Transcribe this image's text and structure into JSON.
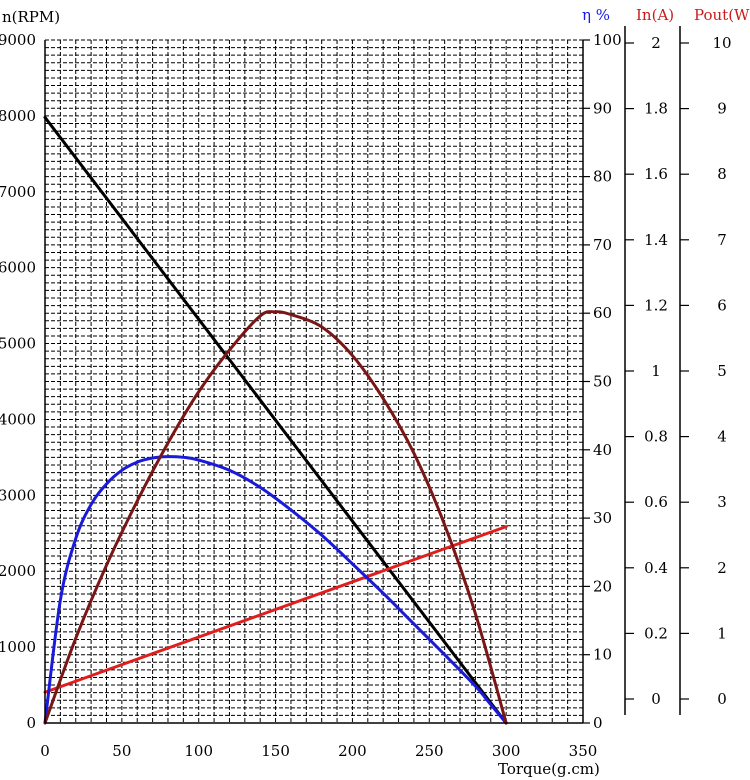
{
  "chart_data": {
    "type": "line",
    "title": "",
    "xlabel": "Torque(g.cm)",
    "xlim": [
      0,
      350
    ],
    "x_ticks": [
      0,
      50,
      100,
      150,
      200,
      250,
      300,
      350
    ],
    "grid": true,
    "axes": {
      "speed": {
        "label": "n(RPM)",
        "min": 0,
        "max": 9000,
        "ticks": [
          0,
          1000,
          2000,
          3000,
          4000,
          5000,
          6000,
          7000,
          8000,
          9000
        ],
        "color": "#000000"
      },
      "efficiency": {
        "label": "η %",
        "min": 0,
        "max": 100,
        "ticks": [
          0,
          10,
          20,
          30,
          40,
          50,
          60,
          70,
          80,
          90,
          100
        ],
        "color": "#1a1ae6"
      },
      "current": {
        "label": "In(A)",
        "min": 0,
        "max": 2,
        "ticks": [
          "0",
          "0.2",
          "0.4",
          "0.6",
          "0.8",
          "1",
          "1.2",
          "1.4",
          "1.6",
          "1.8",
          "2"
        ],
        "color": "#cc1a1a"
      },
      "power": {
        "label": "Pout(W)",
        "min": 0,
        "max": 10,
        "ticks": [
          0,
          1,
          2,
          3,
          4,
          5,
          6,
          7,
          8,
          9,
          10
        ],
        "color": "#cc1a1a"
      }
    },
    "series": [
      {
        "axis": "speed",
        "color": "#000000",
        "x": [
          0,
          300
        ],
        "values": [
          7980,
          0
        ]
      },
      {
        "axis": "current",
        "color": "#e01e1e",
        "x": [
          0,
          300
        ],
        "values": [
          0.09,
          0.575
        ]
      },
      {
        "axis": "efficiency",
        "color": "#1a1adb",
        "x": [
          0,
          10,
          20,
          30,
          40,
          50,
          60,
          70,
          80,
          90,
          100,
          120,
          140,
          160,
          180,
          200,
          220,
          240,
          260,
          280,
          290,
          300
        ],
        "values": [
          0,
          18,
          27,
          32,
          35,
          37,
          38.2,
          38.8,
          39,
          38.9,
          38.5,
          37,
          34.5,
          31.2,
          27.5,
          23.3,
          19,
          14.5,
          10,
          5.4,
          2.7,
          0
        ]
      },
      {
        "axis": "power",
        "color": "#7a1616",
        "x": [
          0,
          20,
          40,
          60,
          80,
          100,
          120,
          140,
          150,
          160,
          180,
          200,
          220,
          240,
          260,
          280,
          300
        ],
        "values": [
          0,
          1.24,
          2.31,
          3.25,
          4.1,
          4.85,
          5.46,
          5.96,
          6.02,
          5.98,
          5.8,
          5.38,
          4.75,
          3.95,
          2.9,
          1.6,
          0
        ]
      }
    ]
  }
}
